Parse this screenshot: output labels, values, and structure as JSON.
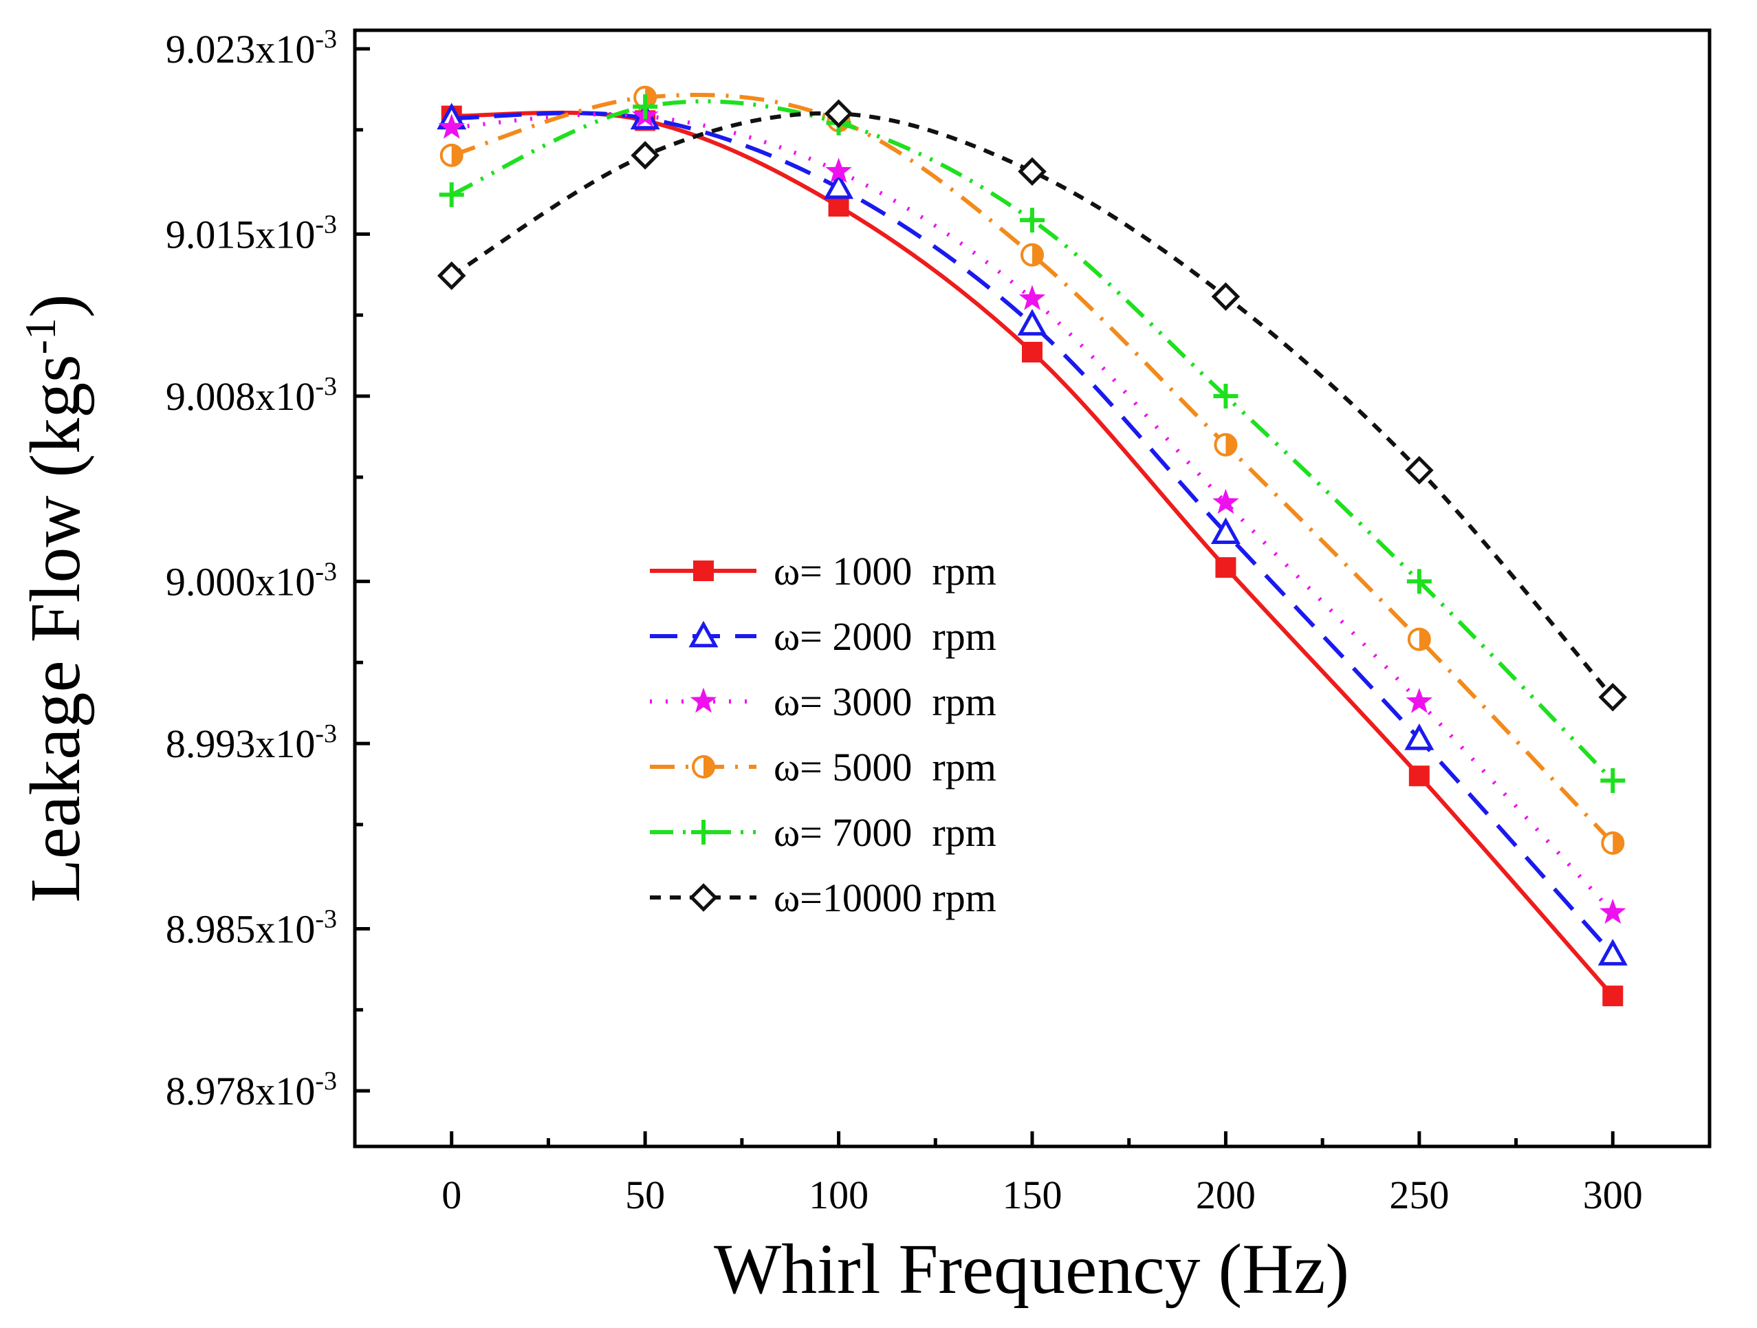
{
  "chart_data": {
    "type": "line",
    "xlabel": "Whirl Frequency (Hz)",
    "ylabel_main": "Leakage Flow (kgs",
    "ylabel_sup": "-1",
    "ylabel_close": ")",
    "x": [
      0,
      50,
      100,
      150,
      200,
      250,
      300
    ],
    "xlim": [
      -25,
      325
    ],
    "ylim": [
      8.9756,
      9.0238
    ],
    "x_ticks": [
      {
        "value": 0,
        "label": "0"
      },
      {
        "value": 50,
        "label": "50"
      },
      {
        "value": 100,
        "label": "100"
      },
      {
        "value": 150,
        "label": "150"
      },
      {
        "value": 200,
        "label": "200"
      },
      {
        "value": 250,
        "label": "250"
      },
      {
        "value": 300,
        "label": "300"
      }
    ],
    "y_ticks": [
      {
        "value": 9.023,
        "mantissa": "9.023x10",
        "exp": "-3"
      },
      {
        "value": 9.015,
        "mantissa": "9.015x10",
        "exp": "-3"
      },
      {
        "value": 9.008,
        "mantissa": "9.008x10",
        "exp": "-3"
      },
      {
        "value": 9.0,
        "mantissa": "9.000x10",
        "exp": "-3"
      },
      {
        "value": 8.993,
        "mantissa": "8.993x10",
        "exp": "-3"
      },
      {
        "value": 8.985,
        "mantissa": "8.985x10",
        "exp": "-3"
      },
      {
        "value": 8.978,
        "mantissa": "8.978x10",
        "exp": "-3"
      }
    ],
    "y_minor_ticks": [
      9.0195,
      9.0115,
      9.0045,
      8.9965,
      8.9895,
      8.9815
    ],
    "legend_position": "center",
    "series": [
      {
        "name": "ω= 1000  rpm",
        "color": "#ee1c1c",
        "dash": "none",
        "marker": "filled-square",
        "values": [
          9.0201,
          9.0199,
          9.0162,
          9.0099,
          9.0006,
          8.9916,
          8.9821
        ]
      },
      {
        "name": "ω= 2000  rpm",
        "color": "#1a1aee",
        "dash": "dashed",
        "marker": "open-triangle",
        "values": [
          9.02,
          9.02,
          9.017,
          9.0111,
          9.0021,
          8.9932,
          8.9839
        ]
      },
      {
        "name": "ω= 3000  rpm",
        "color": "#ee11ee",
        "dash": "dotted",
        "marker": "filled-star",
        "values": [
          9.0196,
          9.0201,
          9.0177,
          9.0122,
          9.0034,
          8.9948,
          8.9857
        ]
      },
      {
        "name": "ω= 5000  rpm",
        "color": "#f28a1c",
        "dash": "dash-dot",
        "marker": "half-circle",
        "values": [
          9.0184,
          9.0209,
          9.0199,
          9.0141,
          9.0059,
          8.9975,
          8.9887
        ]
      },
      {
        "name": "ω= 7000  rpm",
        "color": "#1ee01e",
        "dash": "dash-dot-dot",
        "marker": "plus",
        "values": [
          9.0167,
          9.0205,
          9.0198,
          9.0156,
          9.008,
          9.0,
          8.9914
        ]
      },
      {
        "name": "ω=10000 rpm",
        "color": "#111111",
        "dash": "short-dash",
        "marker": "open-diamond",
        "values": [
          9.0132,
          9.0184,
          9.0202,
          9.0177,
          9.0123,
          9.0048,
          8.995
        ]
      }
    ]
  }
}
